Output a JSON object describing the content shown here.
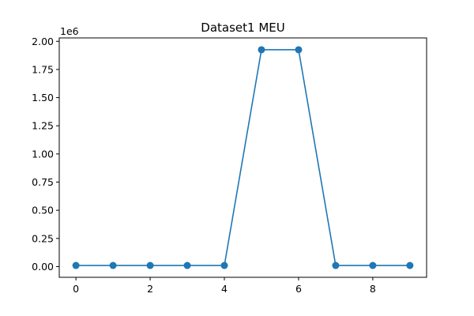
{
  "chart_data": {
    "type": "line",
    "title": "Dataset1 MEU",
    "xlabel": "",
    "ylabel": "",
    "offset_label": "1e6",
    "x": [
      0,
      1,
      2,
      3,
      4,
      5,
      6,
      7,
      8,
      9
    ],
    "series": [
      {
        "values": [
          10000,
          10000,
          10000,
          10000,
          10000,
          1925000,
          1925000,
          10000,
          10000,
          10000
        ]
      }
    ],
    "xlim": [
      -0.45,
      9.45
    ],
    "ylim": [
      -95000,
      2030000
    ],
    "x_ticks": [
      0,
      2,
      4,
      6,
      8
    ],
    "x_tick_labels": [
      "0",
      "2",
      "4",
      "6",
      "8"
    ],
    "y_ticks": [
      0,
      250000,
      500000,
      750000,
      1000000,
      1250000,
      1500000,
      1750000,
      2000000
    ],
    "y_tick_labels": [
      "0.00",
      "0.25",
      "0.50",
      "0.75",
      "1.00",
      "1.25",
      "1.50",
      "1.75",
      "2.00"
    ],
    "grid": false,
    "marker": "circle",
    "colors": {
      "series": "#1f77b4",
      "axes": "#000000",
      "background": "#ffffff"
    }
  }
}
